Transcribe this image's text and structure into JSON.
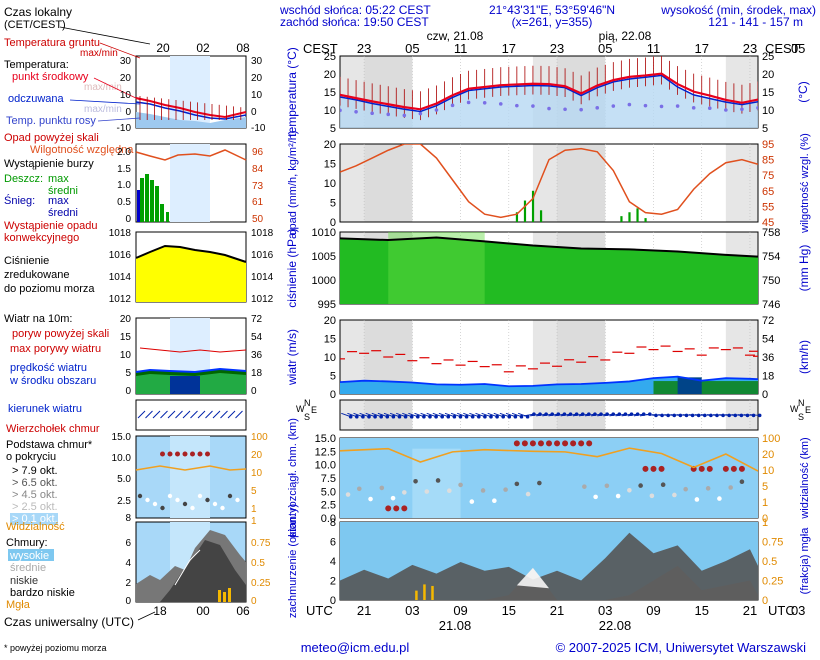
{
  "header": {
    "sunrise": "wschód słońca: 05:22 CEST",
    "sunset": "zachód słońca: 19:50 CEST",
    "coords": "21°43'31\"E, 53°59'46\"N",
    "grid": "(x=261, y=355)",
    "elev_title": "wysokość (min, środek, max)",
    "elev_values": "121 - 141 - 157 m",
    "day1": "czw, 21.08",
    "day2": "pią, 22.08",
    "cest": "CEST",
    "utc": "UTC",
    "cest_ticks": [
      "23",
      "05",
      "11",
      "17",
      "23",
      "05",
      "11",
      "17",
      "23",
      "05"
    ],
    "utc_ticks": [
      "21",
      "03",
      "09",
      "15",
      "21",
      "03",
      "09",
      "15",
      "21",
      "03"
    ],
    "date1": "21.08",
    "date2": "22.08"
  },
  "legend": {
    "local_time": "Czas lokalny",
    "local_time_sub": "(CET/CEST)",
    "local_ticks": [
      "20",
      "02",
      "08"
    ],
    "utc_ticks": [
      "18",
      "00",
      "06"
    ],
    "utc_label": "Czas uniwersalny (UTC)",
    "temp_ground": "Temperatura gruntu",
    "maxmin": "max/min",
    "temperature": "Temperatura:",
    "mid_point": "punkt środkowy",
    "maxmin2": "max/min",
    "felt": "odczuwana",
    "maxmin3": "max/min",
    "dew": "Temp. punktu rosy",
    "precip_above": "Opad powyżej skali",
    "humidity": "Wilgotność względna",
    "storm": "Wystąpienie burzy",
    "rain": "Deszcz:",
    "max": "max",
    "mean": "średni",
    "snow": "Śnieg:",
    "conv": "Wystąpienie opadu",
    "conv2": "konwekcyjnego",
    "pressure1": "Ciśnienie",
    "pressure2": "zredukowane",
    "pressure3": "do poziomu morza",
    "wind10": "Wiatr na 10m:",
    "gust_above": "poryw powyżej skali",
    "max_gust": "max porywy wiatru",
    "wind_speed": "prędkość wiatru",
    "wind_area": "w środku obszaru",
    "wind_dir": "kierunek wiatru",
    "cloud_top": "Wierzchołek chmur",
    "cloud_base1": "Podstawa chmur*",
    "cloud_base2": "o pokryciu",
    "okt": [
      "> 7.9 okt.",
      "> 6.5 okt.",
      "> 4.5 okt.",
      "> 2.5 okt.",
      "> 0.1 okt."
    ],
    "visibility": "Widzialność",
    "clouds": "Chmury:",
    "high": "wysokie",
    "medium": "średnie",
    "low": "niskie",
    "very_low": "bardzo niskie",
    "fog": "Mgła",
    "footnote": "* powyżej poziomu morza"
  },
  "footer": {
    "email": "meteo@icm.edu.pl",
    "copyright": "© 2007-2025 ICM, Uniwersytet Warszawski"
  },
  "colors": {
    "temp_red": "#e8001c",
    "felt_blue": "#0022cc",
    "dew_purple": "#7a6fe6",
    "humidity_orange": "#e0501e",
    "rain_green": "#00a000",
    "pressure_green": "#33cc33",
    "pressure_yellow": "#ffff00",
    "wind_blue": "#0033ff",
    "gust_red": "#dd0000",
    "visibility_orange": "#f0a020",
    "cloud_blue": "#7ec8f0",
    "fog_orange": "#f5b800"
  },
  "chart_data": [
    {
      "type": "line",
      "panel": "temperatura",
      "ylabel": "temperatura (°C)",
      "ylim": [
        5,
        25
      ],
      "yticks": [
        "5",
        "10",
        "15",
        "20",
        "25"
      ],
      "x_hours_utc": [
        18,
        20,
        22,
        24,
        26,
        28,
        30,
        32,
        34,
        36,
        38,
        40,
        42,
        44,
        46,
        48,
        50,
        52,
        54,
        56,
        58,
        60,
        62,
        64,
        66,
        68,
        70
      ],
      "series": [
        {
          "name": "punkt środkowy",
          "values": [
            14.2,
            13.3,
            12.4,
            11.6,
            10.8,
            10.2,
            11.8,
            14.1,
            15.9,
            16.4,
            16.9,
            17.1,
            17.3,
            17.2,
            16.6,
            14.6,
            16.8,
            18.3,
            19.2,
            19.6,
            20.1,
            17.2,
            15.1,
            14.0,
            12.8,
            12.0,
            12.9
          ]
        },
        {
          "name": "odczuwana",
          "values": [
            13.6,
            12.8,
            11.8,
            11.0,
            10.2,
            9.6,
            11.2,
            13.5,
            15.4,
            15.9,
            16.4,
            16.6,
            16.8,
            16.7,
            16.2,
            14.0,
            16.2,
            17.8,
            18.6,
            19.1,
            19.6,
            16.4,
            14.2,
            13.2,
            12.2,
            11.5,
            12.3
          ]
        },
        {
          "name": "Temp. punktu rosy",
          "values": [
            9.9,
            9.5,
            9.1,
            8.8,
            8.5,
            9.0,
            10.0,
            11.3,
            12.1,
            12.0,
            11.7,
            11.2,
            11.1,
            10.4,
            10.2,
            10.1,
            10.6,
            11.1,
            11.5,
            11.2,
            11.0,
            11.1,
            10.6,
            10.5,
            10.0,
            10.2,
            10.6
          ]
        }
      ]
    },
    {
      "type": "line",
      "panel": "opad",
      "ylabel": "opad (mm/h, kg/m²/h)",
      "ylabel2": "wilgotność wzgl. (%)",
      "ylim": [
        0,
        20
      ],
      "yticks": [
        "0",
        "5",
        "10",
        "15",
        "20"
      ],
      "ylim2": [
        45,
        95
      ],
      "yticks2": [
        "45",
        "55",
        "65",
        "75",
        "85",
        "95"
      ],
      "x_hours_utc": [
        18,
        20,
        22,
        24,
        26,
        28,
        30,
        32,
        34,
        36,
        38,
        40,
        42,
        44,
        46,
        48,
        50,
        52,
        54,
        56,
        58,
        60,
        62,
        64,
        66,
        68,
        70
      ],
      "series": [
        {
          "name": "wilgotność",
          "values": [
            77,
            81,
            86,
            91,
            95,
            95,
            86,
            72,
            58,
            50,
            48,
            50,
            60,
            85,
            91,
            92,
            90,
            78,
            58,
            51,
            50,
            53,
            66,
            76,
            83,
            85,
            82
          ]
        }
      ],
      "rain_bars": {
        "x_hours_utc": [
          40,
          41,
          42,
          43,
          53,
          54,
          55,
          56
        ],
        "values": [
          2.5,
          5.5,
          8,
          3,
          1.5,
          2.5,
          3.5,
          1
        ]
      }
    },
    {
      "type": "area",
      "panel": "ciśnienie",
      "ylabel": "ciśnienie (hPa)",
      "ylabel2": "(mm Hg)",
      "ylim": [
        995,
        1012
      ],
      "yticks": [
        "995",
        "1000",
        "1005",
        "1010"
      ],
      "yticks2": [
        "746",
        "750",
        "754",
        "758"
      ],
      "x_hours_utc": [
        18,
        24,
        30,
        36,
        42,
        48,
        54,
        60,
        66,
        70
      ],
      "series": [
        {
          "name": "ciśnienie",
          "values": [
            1010.5,
            1010.1,
            1010.7,
            1009.8,
            1008.8,
            1008.1,
            1007.9,
            1007.4,
            1006.6,
            1006.2
          ]
        }
      ]
    },
    {
      "type": "line",
      "panel": "wiatr",
      "ylabel": "wiatr (m/s)",
      "ylabel2": "(km/h)",
      "ylim": [
        0,
        20
      ],
      "yticks": [
        "0",
        "5",
        "10",
        "15",
        "20"
      ],
      "yticks2": [
        "0",
        "18",
        "36",
        "54",
        "72"
      ],
      "x_hours_utc": [
        18,
        21,
        24,
        27,
        30,
        33,
        36,
        39,
        42,
        45,
        48,
        51,
        54,
        57,
        60,
        63,
        66,
        69,
        70
      ],
      "series": [
        {
          "name": "prędkość wiatru",
          "values": [
            3.2,
            3.6,
            3.4,
            3.1,
            2.6,
            2.5,
            2.7,
            2.1,
            2.2,
            2.6,
            2.7,
            3.0,
            3.4,
            4.3,
            4.7,
            3.6,
            4.3,
            4.1,
            4.0
          ]
        },
        {
          "name": "max porywy wiatru",
          "values": [
            9.5,
            11.0,
            10.0,
            9.0,
            8.2,
            7.8,
            7.4,
            6.0,
            6.8,
            7.5,
            8.6,
            9.2,
            11.0,
            12.0,
            11.5,
            10.5,
            12.0,
            10.5,
            10.2
          ]
        }
      ]
    },
    {
      "type": "scatter",
      "panel": "chmury",
      "ylabel": "pion. rozciągł. chm. (km)",
      "ylabel2": "widzialność (km)",
      "ylim": [
        0,
        15
      ],
      "yticks": [
        "0.0",
        "2.5",
        "5.0",
        "7.5",
        "10.0",
        "12.5",
        "15.0"
      ],
      "yticks2": [
        "0",
        "1",
        "5",
        "10",
        "20",
        "100"
      ],
      "series": [
        {
          "name": "Widzialność",
          "x_hours_utc": [
            18,
            24,
            28,
            32,
            36,
            42,
            46,
            50,
            54,
            58,
            62,
            66,
            70
          ],
          "values": [
            12.6,
            13.0,
            10.5,
            12.4,
            12.8,
            12.5,
            12.4,
            11.5,
            13.1,
            12.1,
            9.5,
            12.0,
            8.8
          ]
        },
        {
          "name": "Wierzchołek chmur",
          "x_hours_utc": [
            40,
            41,
            42,
            43,
            44,
            45,
            46
          ],
          "values": [
            14.0,
            14.0,
            14.0,
            14.0,
            14.0,
            14.0,
            14.0
          ]
        }
      ]
    },
    {
      "type": "area",
      "panel": "zachmurzenie",
      "ylabel": "zachmurzenie (oktanty)",
      "ylabel2": "(frakcja) mgła",
      "ylim": [
        0,
        8
      ],
      "yticks": [
        "0",
        "2",
        "4",
        "6",
        "8"
      ],
      "yticks2": [
        "0",
        "0.25",
        "0.5",
        "0.75",
        "1"
      ],
      "x_hours_utc": [
        18,
        21,
        24,
        27,
        30,
        33,
        36,
        39,
        42,
        45,
        48,
        51,
        54,
        57,
        60,
        63,
        66,
        69,
        70
      ],
      "series": [
        {
          "name": "niskie",
          "values": [
            2.0,
            3.1,
            2.2,
            3.6,
            2.7,
            3.9,
            3.0,
            3.4,
            2.1,
            3.0,
            2.0,
            4.3,
            6.9,
            4.8,
            5.6,
            3.0,
            4.0,
            5.2,
            3.5
          ]
        },
        {
          "name": "średnie",
          "values": [
            0.0,
            0.0,
            0.0,
            0.0,
            0.0,
            0.0,
            0.0,
            0.5,
            3.3,
            0.0,
            0.0,
            0.0,
            0.5,
            2.0,
            3.5,
            1.0,
            1.5,
            2.0,
            0.5
          ]
        }
      ],
      "fog_bars": {
        "x_hours_utc": [
          27.5,
          28.5,
          29.5
        ],
        "values": [
          0.12,
          0.2,
          0.18
        ]
      }
    }
  ]
}
